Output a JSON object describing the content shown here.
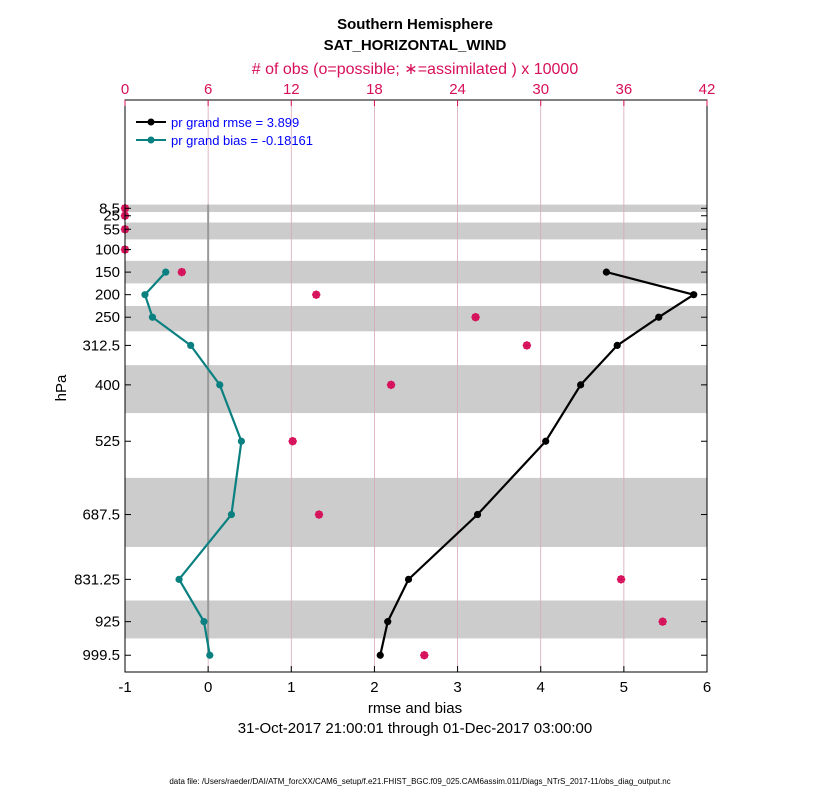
{
  "chart_data": {
    "type": "line",
    "title": "Southern Hemisphere",
    "subtitle": "SAT_HORIZONTAL_WIND",
    "top_axis_label": "# of obs (o=possible; ∗=assimilated ) x 10000",
    "xlabel": "rmse and bias",
    "ylabel": "hPa",
    "date_range": "31-Oct-2017 21:00:01 through 01-Dec-2017 03:00:00",
    "footnote": "data file: /Users/raeder/DAI/ATM_forcXX/CAM6_setup/f.e21.FHIST_BGC.f09_025.CAM6assim.011/Diags_NTrS_2017-11/obs_diag_output.nc",
    "xlim": [
      -1,
      6
    ],
    "x_ticks": [
      "-1",
      "0",
      "1",
      "2",
      "3",
      "4",
      "5",
      "6"
    ],
    "top_xlim": [
      0,
      42
    ],
    "top_ticks": [
      "0",
      "6",
      "12",
      "18",
      "24",
      "30",
      "36",
      "42"
    ],
    "levels": [
      8.5,
      25,
      55,
      100,
      150,
      200,
      250,
      312.5,
      400,
      525,
      687.5,
      831.25,
      925,
      999.5
    ],
    "level_labels": [
      "8.5",
      "25",
      "55",
      "100",
      "150",
      "200",
      "250",
      "312.5",
      "400",
      "525",
      "687.5",
      "831.25",
      "925",
      "999.5"
    ],
    "series": [
      {
        "name": "pr grand rmse",
        "legend": "pr grand rmse = 3.899",
        "color": "#000000",
        "levels": [
          150,
          200,
          250,
          312.5,
          400,
          525,
          687.5,
          831.25,
          925,
          999.5
        ],
        "values": [
          4.79,
          5.84,
          5.42,
          4.92,
          4.48,
          4.06,
          3.24,
          2.41,
          2.16,
          2.07
        ]
      },
      {
        "name": "pr grand bias",
        "legend": "pr grand bias = -0.18161",
        "color": "#0a8080",
        "levels": [
          150,
          200,
          250,
          312.5,
          400,
          525,
          687.5,
          831.25,
          925,
          999.5
        ],
        "values": [
          -0.51,
          -0.76,
          -0.67,
          -0.21,
          0.14,
          0.4,
          0.28,
          -0.35,
          -0.05,
          0.02
        ]
      }
    ],
    "obs_counts": {
      "name": "# of obs (x 10000)",
      "color": "#d6105a",
      "levels": [
        8.5,
        25,
        55,
        100,
        150,
        200,
        250,
        312.5,
        400,
        525,
        687.5,
        831.25,
        925,
        999.5
      ],
      "possible": [
        0.0,
        0.0,
        0.0,
        0.0,
        4.1,
        13.8,
        25.3,
        29.0,
        19.2,
        12.1,
        14.0,
        35.8,
        38.8,
        21.6
      ],
      "assimilated": [
        0.0,
        0.0,
        0.0,
        0.0,
        4.1,
        13.8,
        25.3,
        29.0,
        19.2,
        12.1,
        14.0,
        35.8,
        38.8,
        21.6
      ]
    }
  }
}
